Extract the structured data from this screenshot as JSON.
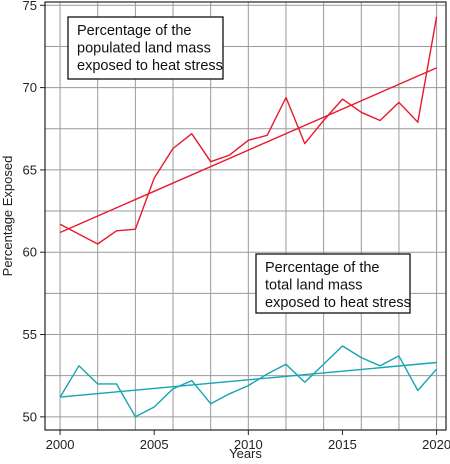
{
  "chart_data": {
    "type": "line",
    "xlabel": "Years",
    "ylabel": "Percentage Exposed",
    "xlim": [
      1999.2,
      2020.5
    ],
    "ylim": [
      49.2,
      75.2
    ],
    "x_ticks": [
      2000,
      2005,
      2010,
      2015,
      2020
    ],
    "y_ticks": [
      50,
      55,
      60,
      65,
      70,
      75
    ],
    "grid": true,
    "x": [
      2000,
      2001,
      2002,
      2003,
      2004,
      2005,
      2006,
      2007,
      2008,
      2009,
      2010,
      2011,
      2012,
      2013,
      2014,
      2015,
      2016,
      2017,
      2018,
      2019,
      2020
    ],
    "series": [
      {
        "color": "#e8192c",
        "values": [
          61.7,
          61.1,
          60.5,
          61.3,
          61.4,
          64.5,
          66.3,
          67.2,
          65.5,
          65.9,
          66.8,
          67.1,
          69.4,
          66.6,
          68.0,
          69.3,
          68.5,
          68.0,
          69.1,
          67.9,
          74.3
        ],
        "trend": [
          61.2,
          71.2
        ]
      },
      {
        "color": "#16a5b3",
        "values": [
          51.2,
          53.1,
          52.0,
          52.0,
          50.0,
          50.6,
          51.7,
          52.2,
          50.8,
          51.4,
          51.9,
          52.6,
          53.2,
          52.1,
          53.2,
          54.3,
          53.6,
          53.1,
          53.7,
          51.6,
          52.9
        ],
        "trend": [
          51.2,
          53.3
        ]
      }
    ],
    "annotations": [
      {
        "lines": [
          "Percentage of the",
          "populated land mass",
          "exposed to heat stress"
        ]
      },
      {
        "lines": [
          "Percentage of the",
          "total land mass",
          "exposed to heat stress"
        ]
      }
    ]
  }
}
